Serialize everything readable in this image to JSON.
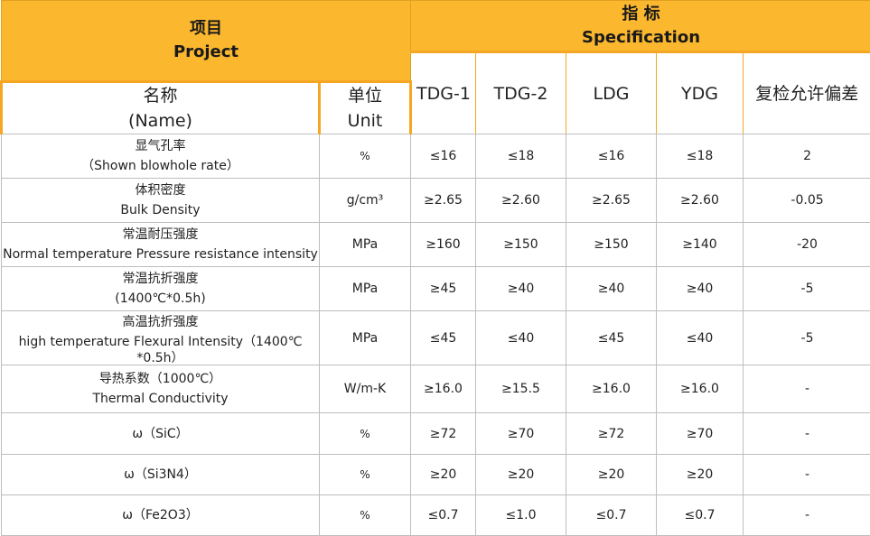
{
  "header": {
    "project_cn": "项目",
    "project_en": "Project",
    "spec_cn": "指 标",
    "spec_en": "Specification"
  },
  "subheader": {
    "name_cn": "名称",
    "name_en": "(Name)",
    "unit_cn": "单位",
    "unit_en": "Unit",
    "columns": [
      "TDG-1",
      "TDG-2",
      "LDG",
      "YDG",
      "复检允许偏差"
    ]
  },
  "rows": [
    {
      "name_line1": "显气孔率",
      "name_line2": "（Shown blowhole rate）",
      "unit": "%",
      "values": [
        "≤16",
        "≤18",
        "≤16",
        "≤18",
        "2"
      ]
    },
    {
      "name_line1": "体积密度",
      "name_line2": "Bulk Density",
      "unit": "g/cm³",
      "values": [
        "≥2.65",
        "≥2.60",
        "≥2.65",
        "≥2.60",
        "-0.05"
      ]
    },
    {
      "name_line1": "常温耐压强度",
      "name_line2": "Normal temperature Pressure resistance intensity",
      "unit": "MPa",
      "values": [
        "≥160",
        "≥150",
        "≥150",
        "≥140",
        "-20"
      ]
    },
    {
      "name_line1": "常温抗折强度",
      "name_line2": "(1400℃*0.5h)",
      "unit": "MPa",
      "values": [
        "≥45",
        "≥40",
        "≥40",
        "≥40",
        "-5"
      ]
    },
    {
      "name_line1": "高温抗折强度",
      "name_line2": "high temperature Flexural Intensity（1400℃",
      "name_line3": "*0.5h）",
      "unit": "MPa",
      "values": [
        "≤45",
        "≤40",
        "≤45",
        "≤40",
        "-5"
      ]
    },
    {
      "name_line1": "导热系数（1000℃）",
      "name_line2": "Thermal Conductivity",
      "unit": "W/m-K",
      "values": [
        "≥16.0",
        "≥15.5",
        "≥16.0",
        "≥16.0",
        "-"
      ]
    },
    {
      "name_line1": "ω（SiC）",
      "unit": "%",
      "values": [
        "≥72",
        "≥70",
        "≥72",
        "≥70",
        "-"
      ]
    },
    {
      "name_line1": "ω（Si3N4）",
      "unit": "%",
      "values": [
        "≥20",
        "≥20",
        "≥20",
        "≥20",
        "-"
      ]
    },
    {
      "name_line1": "ω（Fe2O3）",
      "unit": "%",
      "values": [
        "≤0.7",
        "≤1.0",
        "≤0.7",
        "≤0.7",
        "-"
      ]
    }
  ],
  "colors": {
    "header_bg": "#fbb72e",
    "accent_border": "#f5a623"
  }
}
